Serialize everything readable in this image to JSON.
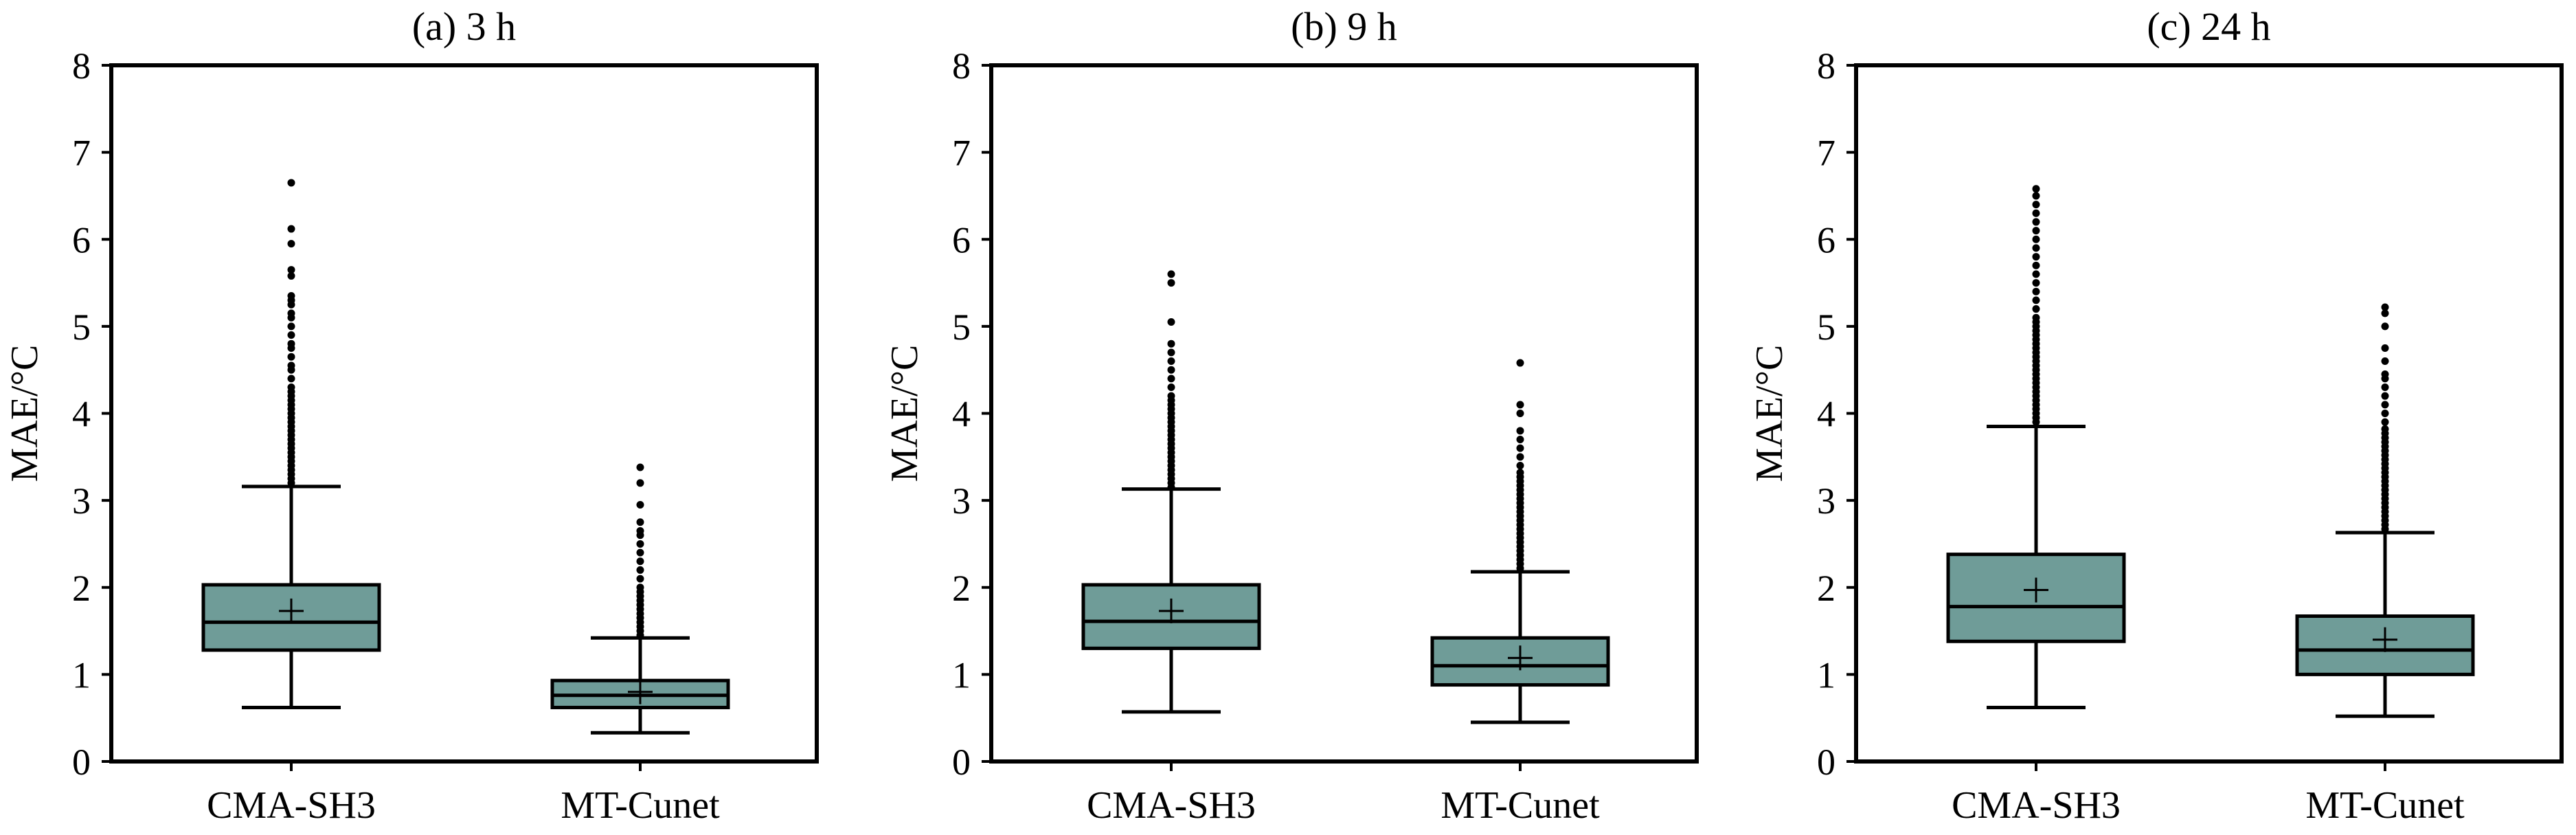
{
  "figure": {
    "box_color": "#6f9c98",
    "line_color": "#000000"
  },
  "chart_data": [
    {
      "type": "box",
      "title": "(a) 3 h",
      "ylabel": "MAE/°C",
      "ylim": [
        0,
        8
      ],
      "yticks": [
        0,
        1,
        2,
        3,
        4,
        5,
        6,
        7,
        8
      ],
      "categories": [
        "CMA-SH3",
        "MT-Cunet"
      ],
      "boxes": [
        {
          "whisker_low": 0.62,
          "q1": 1.28,
          "median": 1.6,
          "q3": 2.03,
          "whisker_high": 3.16,
          "mean": 1.73,
          "outliers": [
            3.2,
            3.25,
            3.3,
            3.35,
            3.4,
            3.45,
            3.5,
            3.55,
            3.6,
            3.65,
            3.7,
            3.75,
            3.8,
            3.85,
            3.9,
            3.95,
            4.0,
            4.05,
            4.1,
            4.15,
            4.2,
            4.25,
            4.3,
            4.4,
            4.5,
            4.55,
            4.65,
            4.75,
            4.8,
            4.9,
            5.0,
            5.1,
            5.15,
            5.25,
            5.3,
            5.35,
            5.58,
            5.65,
            5.95,
            6.12,
            6.65
          ]
        },
        {
          "whisker_low": 0.33,
          "q1": 0.62,
          "median": 0.76,
          "q3": 0.93,
          "whisker_high": 1.42,
          "mean": 0.8,
          "outliers": [
            1.45,
            1.5,
            1.55,
            1.6,
            1.65,
            1.7,
            1.75,
            1.8,
            1.85,
            1.9,
            1.95,
            2.0,
            2.1,
            2.2,
            2.3,
            2.4,
            2.5,
            2.6,
            2.65,
            2.75,
            2.95,
            3.2,
            3.38
          ]
        }
      ]
    },
    {
      "type": "box",
      "title": "(b) 9 h",
      "ylabel": "MAE/°C",
      "ylim": [
        0,
        8
      ],
      "yticks": [
        0,
        1,
        2,
        3,
        4,
        5,
        6,
        7,
        8
      ],
      "categories": [
        "CMA-SH3",
        "MT-Cunet"
      ],
      "boxes": [
        {
          "whisker_low": 0.57,
          "q1": 1.3,
          "median": 1.61,
          "q3": 2.03,
          "whisker_high": 3.13,
          "mean": 1.73,
          "outliers": [
            3.15,
            3.2,
            3.25,
            3.3,
            3.35,
            3.4,
            3.45,
            3.5,
            3.55,
            3.6,
            3.65,
            3.7,
            3.75,
            3.8,
            3.85,
            3.9,
            3.95,
            4.0,
            4.05,
            4.1,
            4.15,
            4.2,
            4.3,
            4.4,
            4.5,
            4.6,
            4.7,
            4.8,
            5.05,
            5.5,
            5.6
          ]
        },
        {
          "whisker_low": 0.45,
          "q1": 0.88,
          "median": 1.1,
          "q3": 1.42,
          "whisker_high": 2.18,
          "mean": 1.19,
          "outliers": [
            2.22,
            2.27,
            2.32,
            2.37,
            2.42,
            2.47,
            2.52,
            2.57,
            2.62,
            2.67,
            2.72,
            2.77,
            2.82,
            2.87,
            2.92,
            2.97,
            3.02,
            3.07,
            3.12,
            3.17,
            3.22,
            3.27,
            3.32,
            3.4,
            3.5,
            3.6,
            3.7,
            3.8,
            4.0,
            4.1,
            4.58
          ]
        }
      ]
    },
    {
      "type": "box",
      "title": "(c) 24 h",
      "ylabel": "MAE/°C",
      "ylim": [
        0,
        8
      ],
      "yticks": [
        0,
        1,
        2,
        3,
        4,
        5,
        6,
        7,
        8
      ],
      "categories": [
        "CMA-SH3",
        "MT-Cunet"
      ],
      "boxes": [
        {
          "whisker_low": 0.62,
          "q1": 1.38,
          "median": 1.78,
          "q3": 2.38,
          "whisker_high": 3.85,
          "mean": 1.97,
          "outliers": [
            3.9,
            3.95,
            4.0,
            4.05,
            4.1,
            4.15,
            4.2,
            4.25,
            4.3,
            4.35,
            4.4,
            4.45,
            4.5,
            4.55,
            4.6,
            4.65,
            4.7,
            4.75,
            4.8,
            4.85,
            4.9,
            4.95,
            5.0,
            5.05,
            5.1,
            5.2,
            5.3,
            5.4,
            5.5,
            5.6,
            5.7,
            5.8,
            5.9,
            6.0,
            6.1,
            6.2,
            6.3,
            6.4,
            6.5,
            6.58
          ]
        },
        {
          "whisker_low": 0.52,
          "q1": 1.0,
          "median": 1.28,
          "q3": 1.67,
          "whisker_high": 2.63,
          "mean": 1.4,
          "outliers": [
            2.67,
            2.72,
            2.77,
            2.82,
            2.87,
            2.92,
            2.97,
            3.02,
            3.07,
            3.12,
            3.17,
            3.22,
            3.27,
            3.32,
            3.37,
            3.42,
            3.47,
            3.52,
            3.57,
            3.62,
            3.67,
            3.72,
            3.77,
            3.82,
            3.9,
            4.0,
            4.1,
            4.2,
            4.3,
            4.4,
            4.45,
            4.6,
            4.75,
            5.0,
            5.15,
            5.22
          ]
        }
      ]
    }
  ]
}
